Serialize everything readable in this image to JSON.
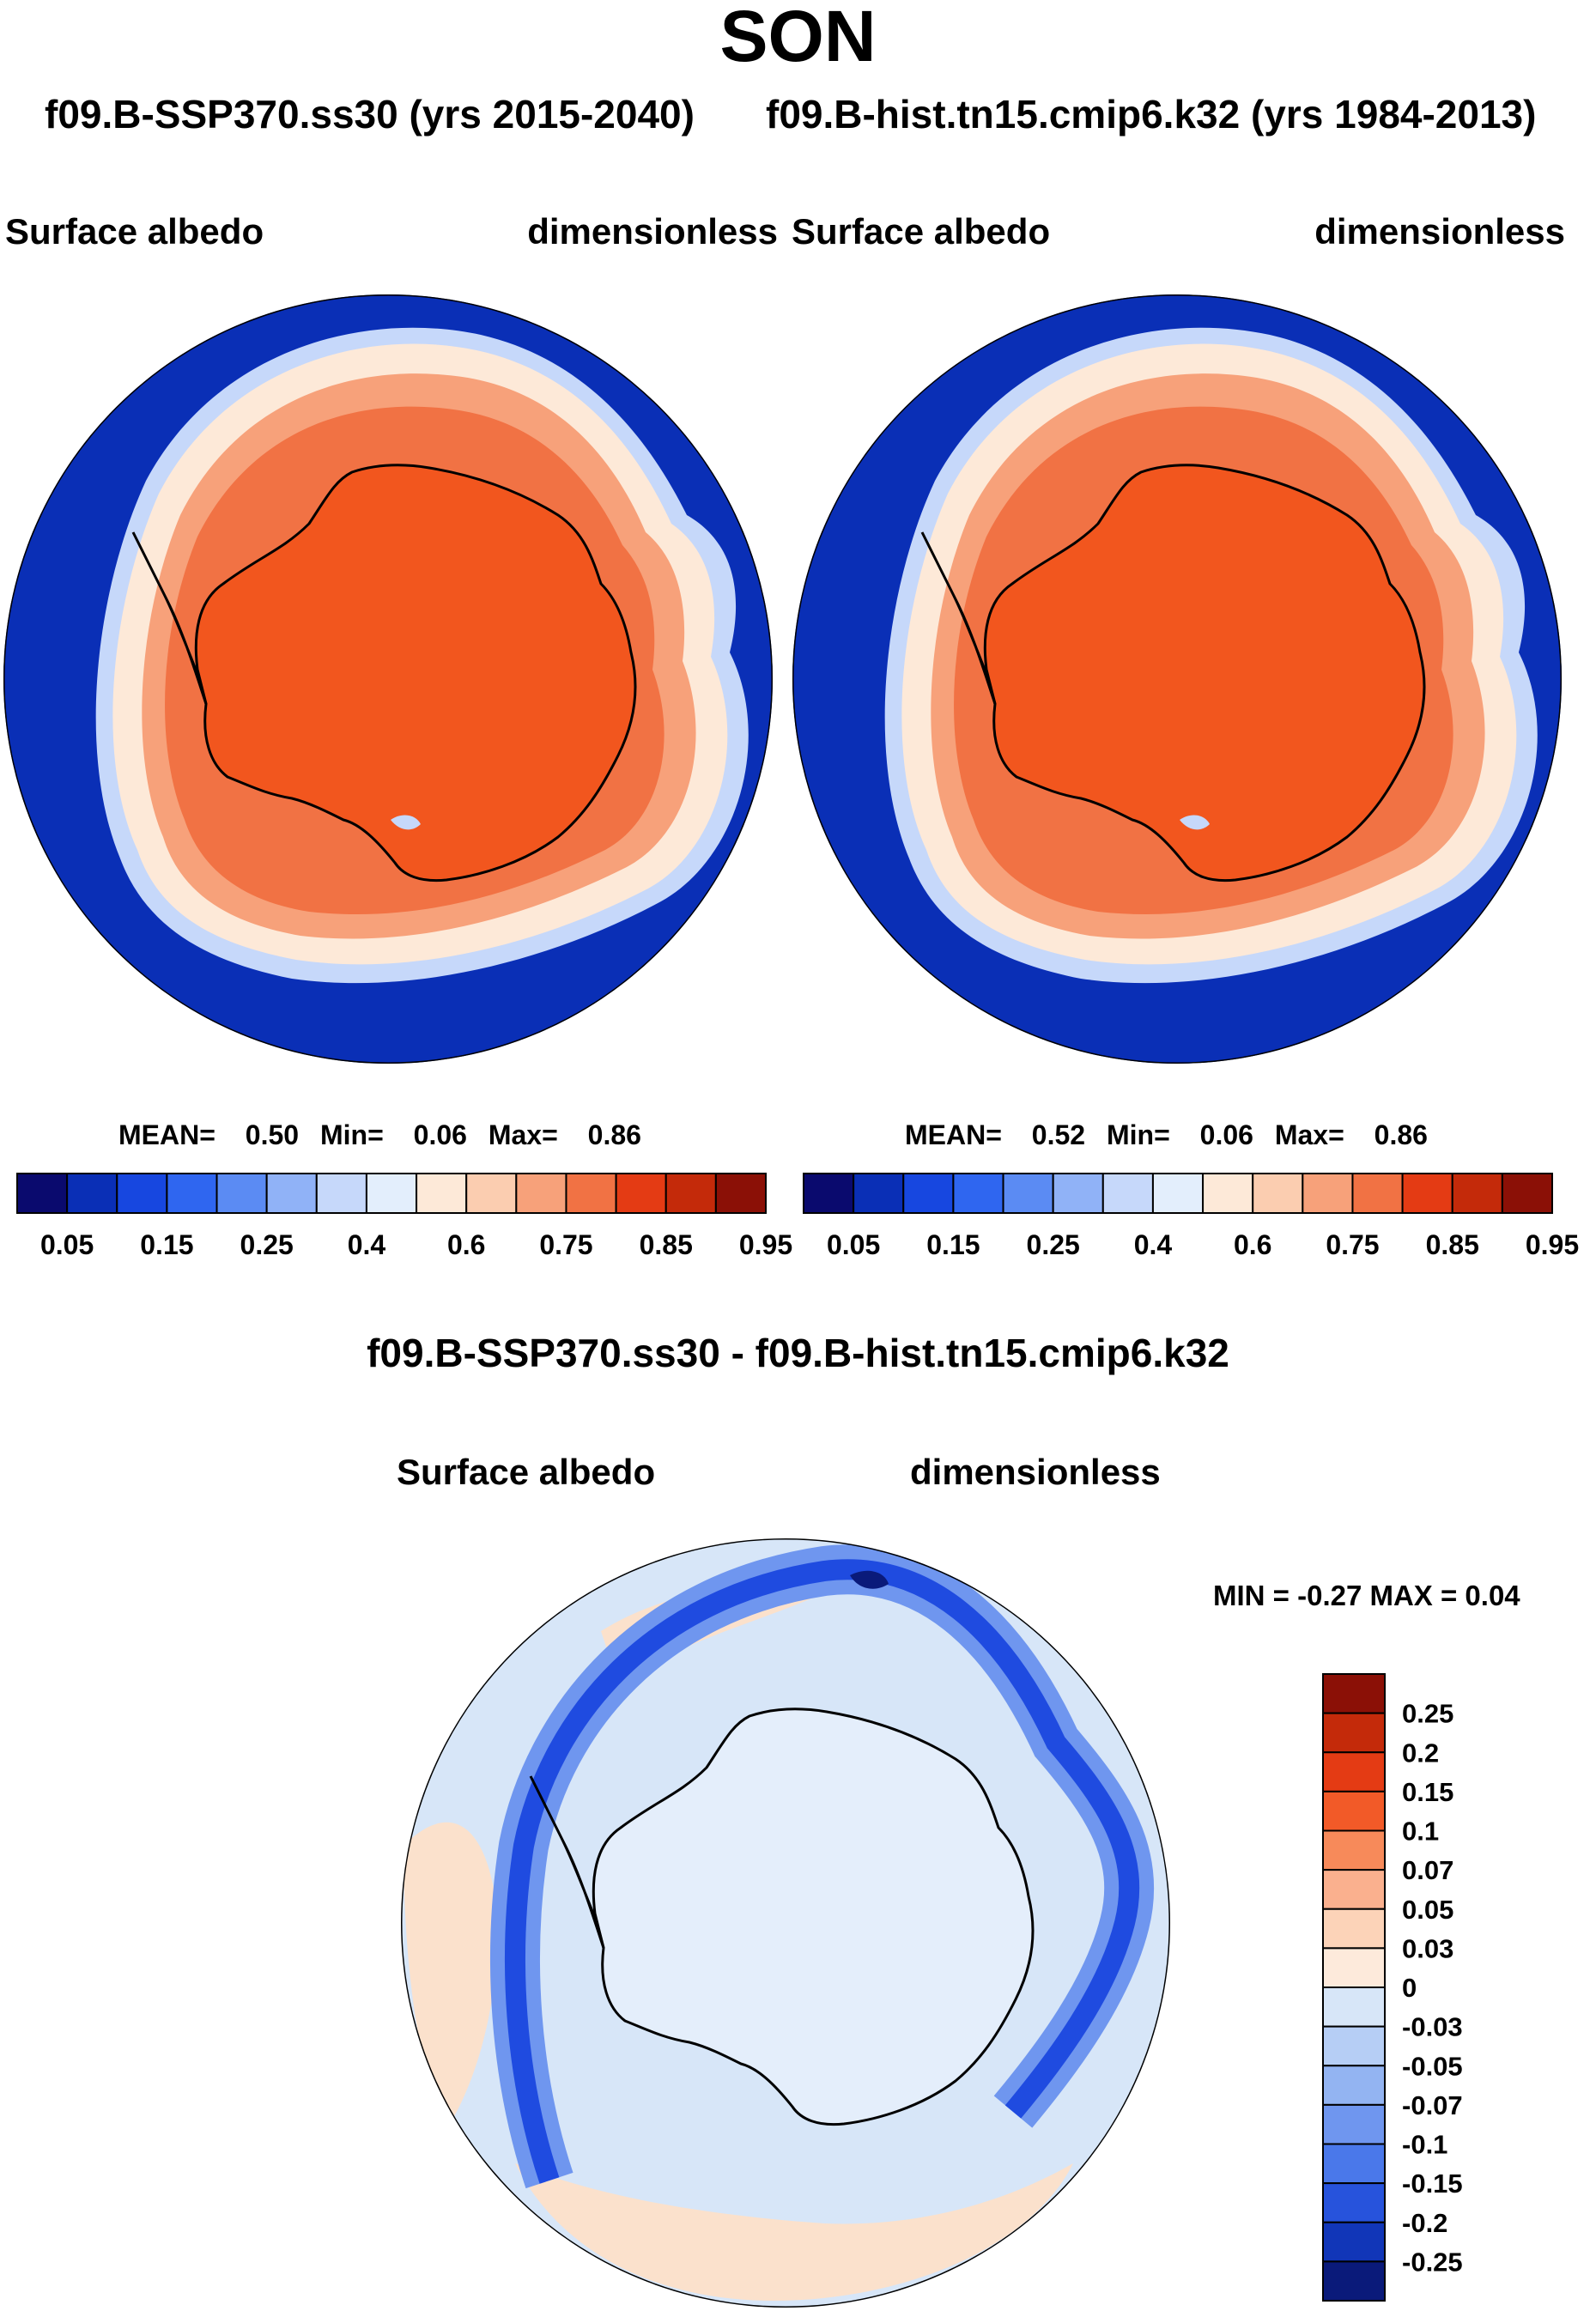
{
  "title": "SON",
  "case_titles": {
    "left": "f09.B-SSP370.ss30 (yrs 2015-2040)",
    "right": "f09.B-hist.tn15.cmip6.k32 (yrs 1984-2013)"
  },
  "panels": [
    {
      "variable": "Surface albedo",
      "units": "dimensionless",
      "mean_label": "MEAN=",
      "mean": "0.50",
      "min_label": "Min=",
      "min": "0.06",
      "max_label": "Max=",
      "max": "0.86"
    },
    {
      "variable": "Surface albedo",
      "units": "dimensionless",
      "mean_label": "MEAN=",
      "mean": "0.52",
      "min_label": "Min=",
      "min": "0.06",
      "max_label": "Max=",
      "max": "0.86"
    }
  ],
  "diff": {
    "title": "f09.B-SSP370.ss30 - f09.B-hist.tn15.cmip6.k32",
    "variable": "Surface albedo",
    "units": "dimensionless",
    "minmax": "MIN =  -0.27 MAX =   0.04"
  },
  "colors": {
    "ocean_dark": "#0a2fb6",
    "land_orange": "#f2561e",
    "diff_bg": "#d7e6f8",
    "diff_pos": "#fbe1cc",
    "diff_neg_dark": "#1f4be0"
  },
  "chart_data": [
    {
      "type": "contour-map",
      "projection": "south-polar-stereographic",
      "title": "Surface albedo",
      "units": "dimensionless",
      "stats": {
        "mean": 0.5,
        "min": 0.06,
        "max": 0.86
      },
      "colorbar": {
        "tick_labels": [
          "0.05",
          "0.15",
          "0.25",
          "0.4",
          "0.6",
          "0.75",
          "0.85",
          "0.95"
        ],
        "colors": [
          "#0a0a6e",
          "#0a2fb6",
          "#1747e0",
          "#2f66f0",
          "#5b8bf3",
          "#90b2f7",
          "#c6d8fa",
          "#e3eefc",
          "#fde9d8",
          "#fbcdb0",
          "#f7a17a",
          "#f17244",
          "#e43b14",
          "#c42a0a",
          "#8b1006"
        ]
      }
    },
    {
      "type": "contour-map",
      "projection": "south-polar-stereographic",
      "title": "Surface albedo",
      "units": "dimensionless",
      "stats": {
        "mean": 0.52,
        "min": 0.06,
        "max": 0.86
      },
      "colorbar": {
        "tick_labels": [
          "0.05",
          "0.15",
          "0.25",
          "0.4",
          "0.6",
          "0.75",
          "0.85",
          "0.95"
        ],
        "colors": [
          "#0a0a6e",
          "#0a2fb6",
          "#1747e0",
          "#2f66f0",
          "#5b8bf3",
          "#90b2f7",
          "#c6d8fa",
          "#e3eefc",
          "#fde9d8",
          "#fbcdb0",
          "#f7a17a",
          "#f17244",
          "#e43b14",
          "#c42a0a",
          "#8b1006"
        ]
      }
    },
    {
      "type": "contour-map",
      "projection": "south-polar-stereographic",
      "title": "f09.B-SSP370.ss30 - f09.B-hist.tn15.cmip6.k32",
      "units": "dimensionless",
      "stats": {
        "min": -0.27,
        "max": 0.04
      },
      "colorbar": {
        "tick_labels": [
          "0.25",
          "0.2",
          "0.15",
          "0.1",
          "0.07",
          "0.05",
          "0.03",
          "0",
          "-0.03",
          "-0.05",
          "-0.07",
          "-0.1",
          "-0.15",
          "-0.2",
          "-0.25"
        ],
        "colors": [
          "#8b1006",
          "#c42a0a",
          "#e43b14",
          "#f25a28",
          "#f78a5a",
          "#fab08e",
          "#fcd3b8",
          "#fdeadb",
          "#d7e6f8",
          "#b6cef5",
          "#93b4f2",
          "#6f96ef",
          "#4a78ea",
          "#2753dc",
          "#1136b8",
          "#0a1a7a"
        ]
      }
    }
  ]
}
